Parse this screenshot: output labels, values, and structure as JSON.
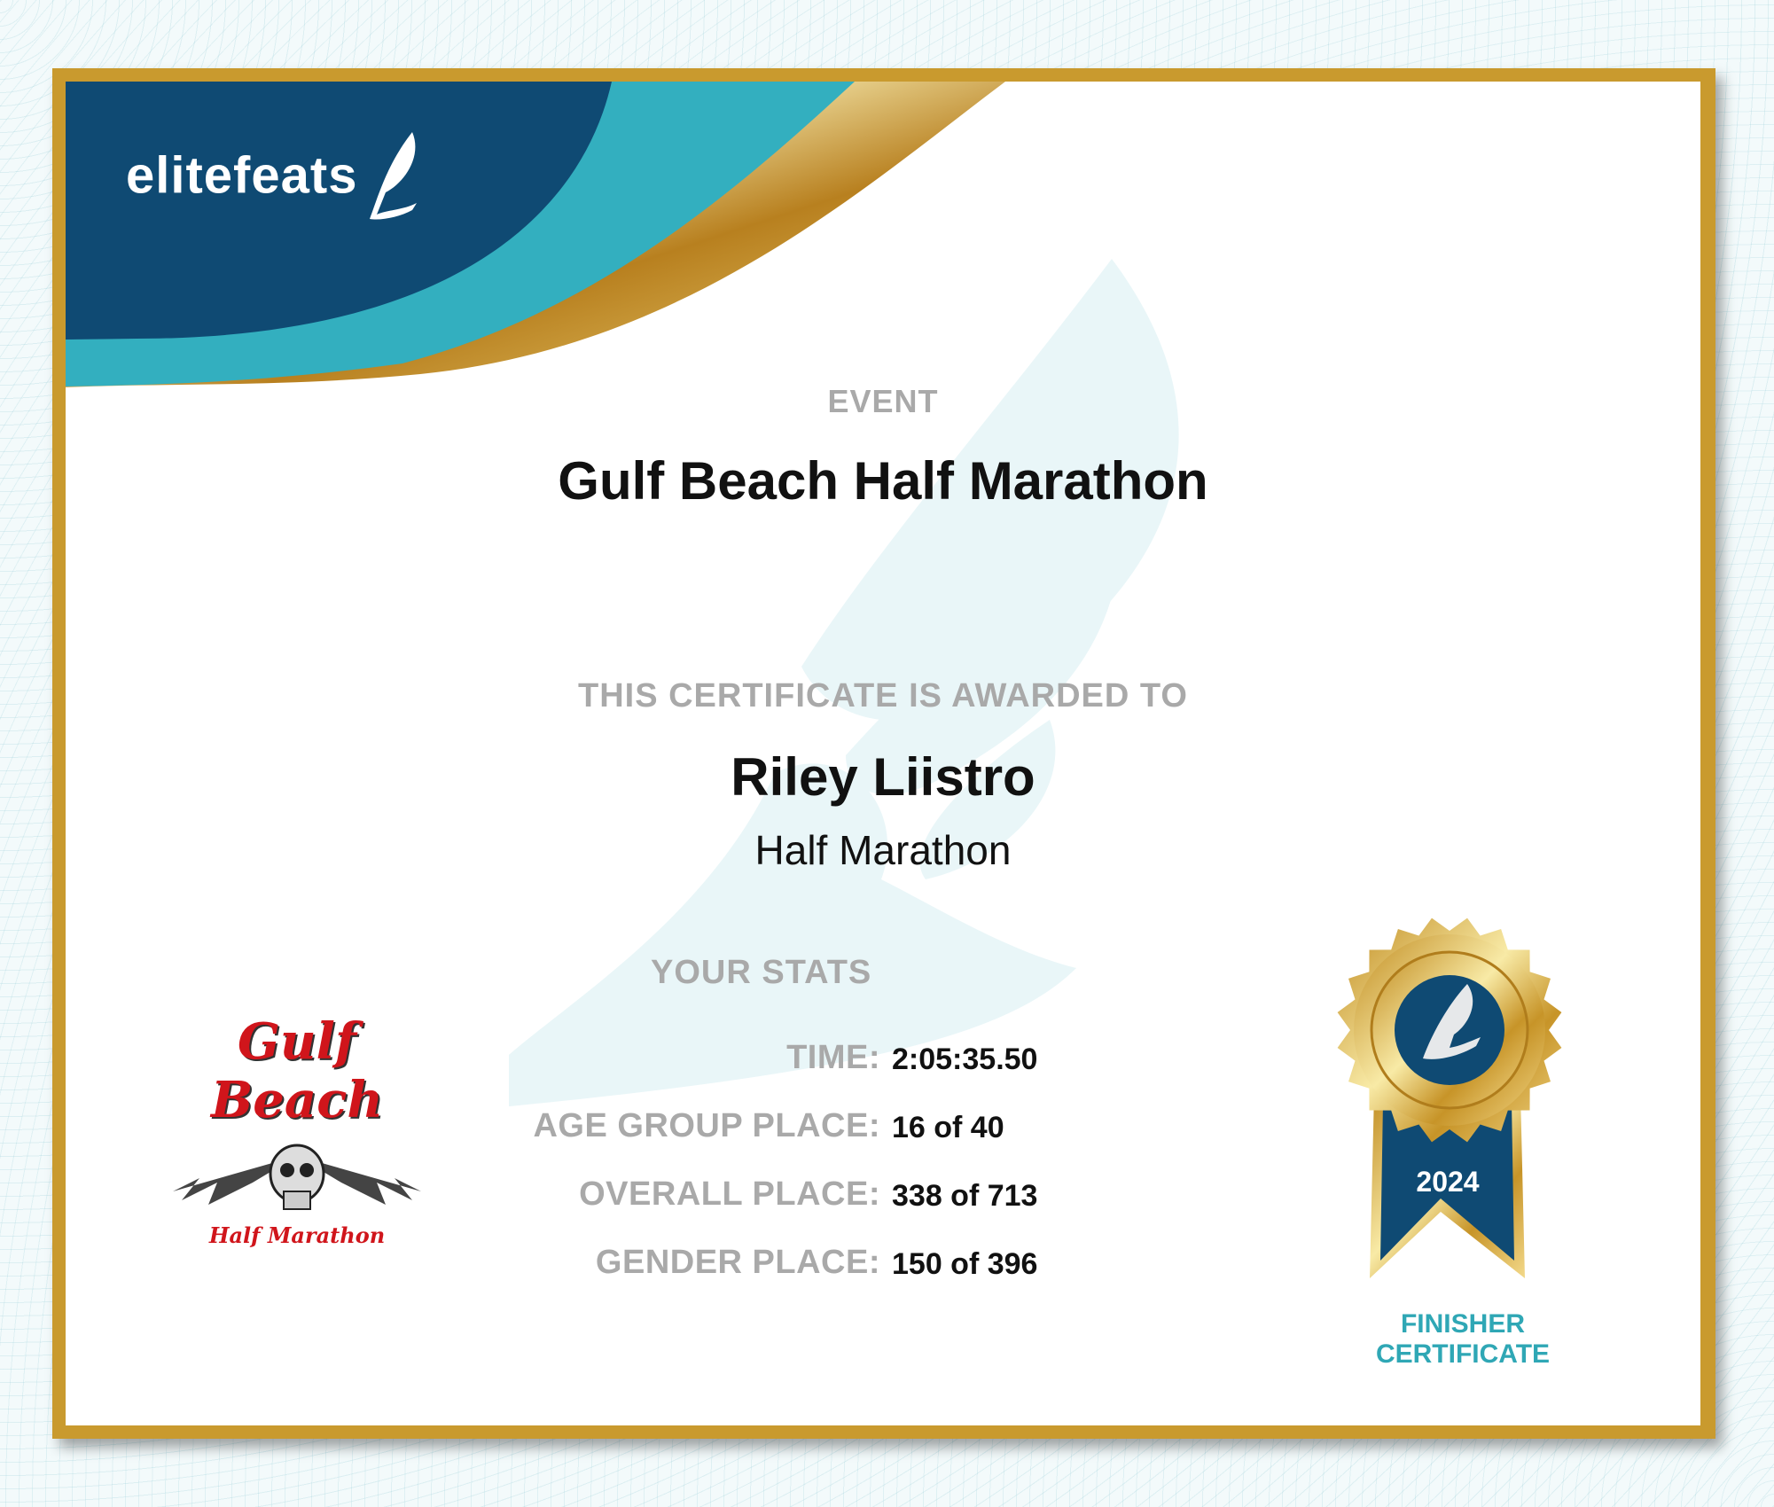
{
  "brand": {
    "logo_text": "elitefeats",
    "colors": {
      "navy": "#0f4a73",
      "teal": "#33afbf",
      "gold": "#c99a2e"
    }
  },
  "event": {
    "label": "EVENT",
    "name": "Gulf Beach Half Marathon"
  },
  "award": {
    "label": "THIS CERTIFICATE IS AWARDED TO",
    "name": "Riley Liistro",
    "race": "Half Marathon"
  },
  "stats": {
    "label": "YOUR STATS",
    "rows": [
      {
        "label": "TIME:",
        "value": "2:05:35.50"
      },
      {
        "label": "AGE GROUP PLACE:",
        "value": "16 of 40"
      },
      {
        "label": "OVERALL PLACE:",
        "value": "338 of 713"
      },
      {
        "label": "GENDER PLACE:",
        "value": "150 of 396"
      }
    ]
  },
  "race_logo": {
    "title": "Gulf Beach",
    "subtitle": "Half Marathon",
    "icon": "winged-skull-icon"
  },
  "badge": {
    "year": "2024",
    "line1": "FINISHER",
    "line2": "CERTIFICATE",
    "icon": "winged-foot-icon"
  }
}
